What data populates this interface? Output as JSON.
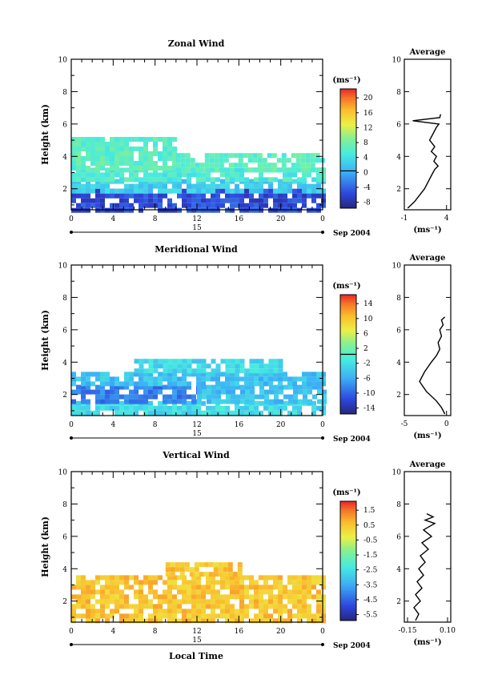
{
  "figure": {
    "xlabel": "Local Time",
    "date_label": "Sep 2004"
  },
  "chart_data": [
    {
      "type": "heatmap",
      "title": "Zonal Wind",
      "ylabel": "Height (km)",
      "xlim": [
        0,
        24
      ],
      "ylim": [
        0.7,
        10
      ],
      "xticks": [
        "0",
        "4",
        "8",
        "12",
        "16",
        "20",
        "0"
      ],
      "yticks": [
        "2",
        "4",
        "6",
        "8",
        "10"
      ],
      "day_label": "15",
      "colorbar": {
        "unit": "(ms⁻¹)",
        "ticks": [
          "20",
          "16",
          "12",
          "8",
          "4",
          "0",
          "-4",
          "-8"
        ],
        "min": -10,
        "max": 22,
        "zero_line": 0
      },
      "fields": [
        {
          "x": [
            0,
            24
          ],
          "y": [
            0.8,
            2.0
          ],
          "value": -6
        },
        {
          "x": [
            0,
            24
          ],
          "y": [
            2.0,
            2.6
          ],
          "value": 2
        },
        {
          "x": [
            0,
            24
          ],
          "y": [
            2.6,
            3.3
          ],
          "value": 5
        },
        {
          "x": [
            0,
            10
          ],
          "y": [
            3.3,
            5.2
          ],
          "value": 6
        },
        {
          "x": [
            10,
            24
          ],
          "y": [
            3.3,
            4.2
          ],
          "value": 6
        }
      ],
      "avg_profile": {
        "title": "Average",
        "xlabel": "(ms⁻¹)",
        "xlim": [
          -1,
          4.5
        ],
        "xticks": [
          "-1",
          "4"
        ],
        "yticks": [
          "2",
          "4",
          "6",
          "8",
          "10"
        ],
        "x": [
          -0.6,
          0.2,
          0.8,
          1.4,
          1.8,
          2.2,
          2.6,
          3.0,
          2.5,
          2.8,
          2.2,
          2.6,
          2.0,
          2.4,
          2.8,
          3.1,
          0.0,
          3.2,
          3.3
        ],
        "y": [
          0.8,
          1.2,
          1.6,
          2.0,
          2.4,
          2.8,
          3.2,
          3.4,
          3.7,
          4.0,
          4.3,
          4.6,
          5.0,
          5.4,
          5.8,
          6.0,
          6.2,
          6.4,
          6.6
        ]
      }
    },
    {
      "type": "heatmap",
      "title": "Meridional Wind",
      "ylabel": "Height (km)",
      "xlim": [
        0,
        24
      ],
      "ylim": [
        0.7,
        10
      ],
      "xticks": [
        "0",
        "4",
        "8",
        "12",
        "16",
        "20",
        "0"
      ],
      "yticks": [
        "2",
        "4",
        "6",
        "8",
        "10"
      ],
      "day_label": "15",
      "colorbar": {
        "unit": "(ms⁻¹)",
        "ticks": [
          "14",
          "10",
          "6",
          "2",
          "-2",
          "-6",
          "-10",
          "-14"
        ],
        "min": -16,
        "max": 16,
        "zero_line": 0
      },
      "fields": [
        {
          "x": [
            0,
            24
          ],
          "y": [
            0.8,
            1.6
          ],
          "value": -3
        },
        {
          "x": [
            0,
            12
          ],
          "y": [
            1.6,
            2.6
          ],
          "value": -9
        },
        {
          "x": [
            12,
            24
          ],
          "y": [
            1.6,
            2.6
          ],
          "value": -5
        },
        {
          "x": [
            0,
            24
          ],
          "y": [
            2.6,
            3.4
          ],
          "value": -5
        },
        {
          "x": [
            6,
            20
          ],
          "y": [
            3.4,
            4.2
          ],
          "value": -3
        }
      ],
      "avg_profile": {
        "title": "Average",
        "xlabel": "(ms⁻¹)",
        "xlim": [
          -5,
          0.5
        ],
        "xticks": [
          "-5",
          "0"
        ],
        "yticks": [
          "2",
          "4",
          "6",
          "8",
          "10"
        ],
        "x": [
          -0.2,
          -0.6,
          -1.2,
          -2.4,
          -3.2,
          -2.6,
          -1.8,
          -1.2,
          -0.8,
          -1.0,
          -0.6,
          -0.8,
          -0.4,
          -0.6,
          -0.2
        ],
        "y": [
          0.8,
          1.2,
          1.6,
          2.2,
          2.8,
          3.4,
          4.0,
          4.4,
          4.8,
          5.2,
          5.6,
          6.0,
          6.3,
          6.6,
          6.8
        ]
      }
    },
    {
      "type": "heatmap",
      "title": "Vertical Wind",
      "ylabel": "Height (km)",
      "xlim": [
        0,
        24
      ],
      "ylim": [
        0.7,
        10
      ],
      "xticks": [
        "0",
        "4",
        "8",
        "12",
        "16",
        "20",
        "0"
      ],
      "yticks": [
        "2",
        "4",
        "6",
        "8",
        "10"
      ],
      "day_label": "15",
      "colorbar": {
        "unit": "(ms⁻¹)",
        "ticks": [
          "1.5",
          "0.5",
          "-0.5",
          "-1.5",
          "-2.5",
          "-3.5",
          "-4.5",
          "-5.5"
        ],
        "min": -6,
        "max": 2,
        "zero_line": null
      },
      "fields": [
        {
          "x": [
            0,
            24
          ],
          "y": [
            0.8,
            3.6
          ],
          "value": 0.4
        },
        {
          "x": [
            9,
            16
          ],
          "y": [
            3.6,
            4.4
          ],
          "value": 0.4
        }
      ],
      "avg_profile": {
        "title": "Average",
        "xlabel": "(ms⁻¹)",
        "xlim": [
          -0.17,
          0.12
        ],
        "xticks": [
          "-0.15",
          "0.10"
        ],
        "yticks": [
          "2",
          "4",
          "6",
          "8",
          "10"
        ],
        "x": [
          -0.1,
          -0.08,
          -0.11,
          -0.07,
          -0.1,
          -0.06,
          -0.09,
          -0.05,
          -0.08,
          -0.04,
          -0.07,
          -0.02,
          -0.06,
          0.0,
          -0.05,
          0.02,
          -0.04,
          0.01,
          -0.03
        ],
        "y": [
          0.8,
          1.2,
          1.6,
          2.0,
          2.4,
          2.8,
          3.2,
          3.6,
          4.0,
          4.4,
          4.8,
          5.2,
          5.6,
          6.0,
          6.4,
          6.8,
          7.0,
          7.2,
          7.4
        ]
      }
    }
  ]
}
